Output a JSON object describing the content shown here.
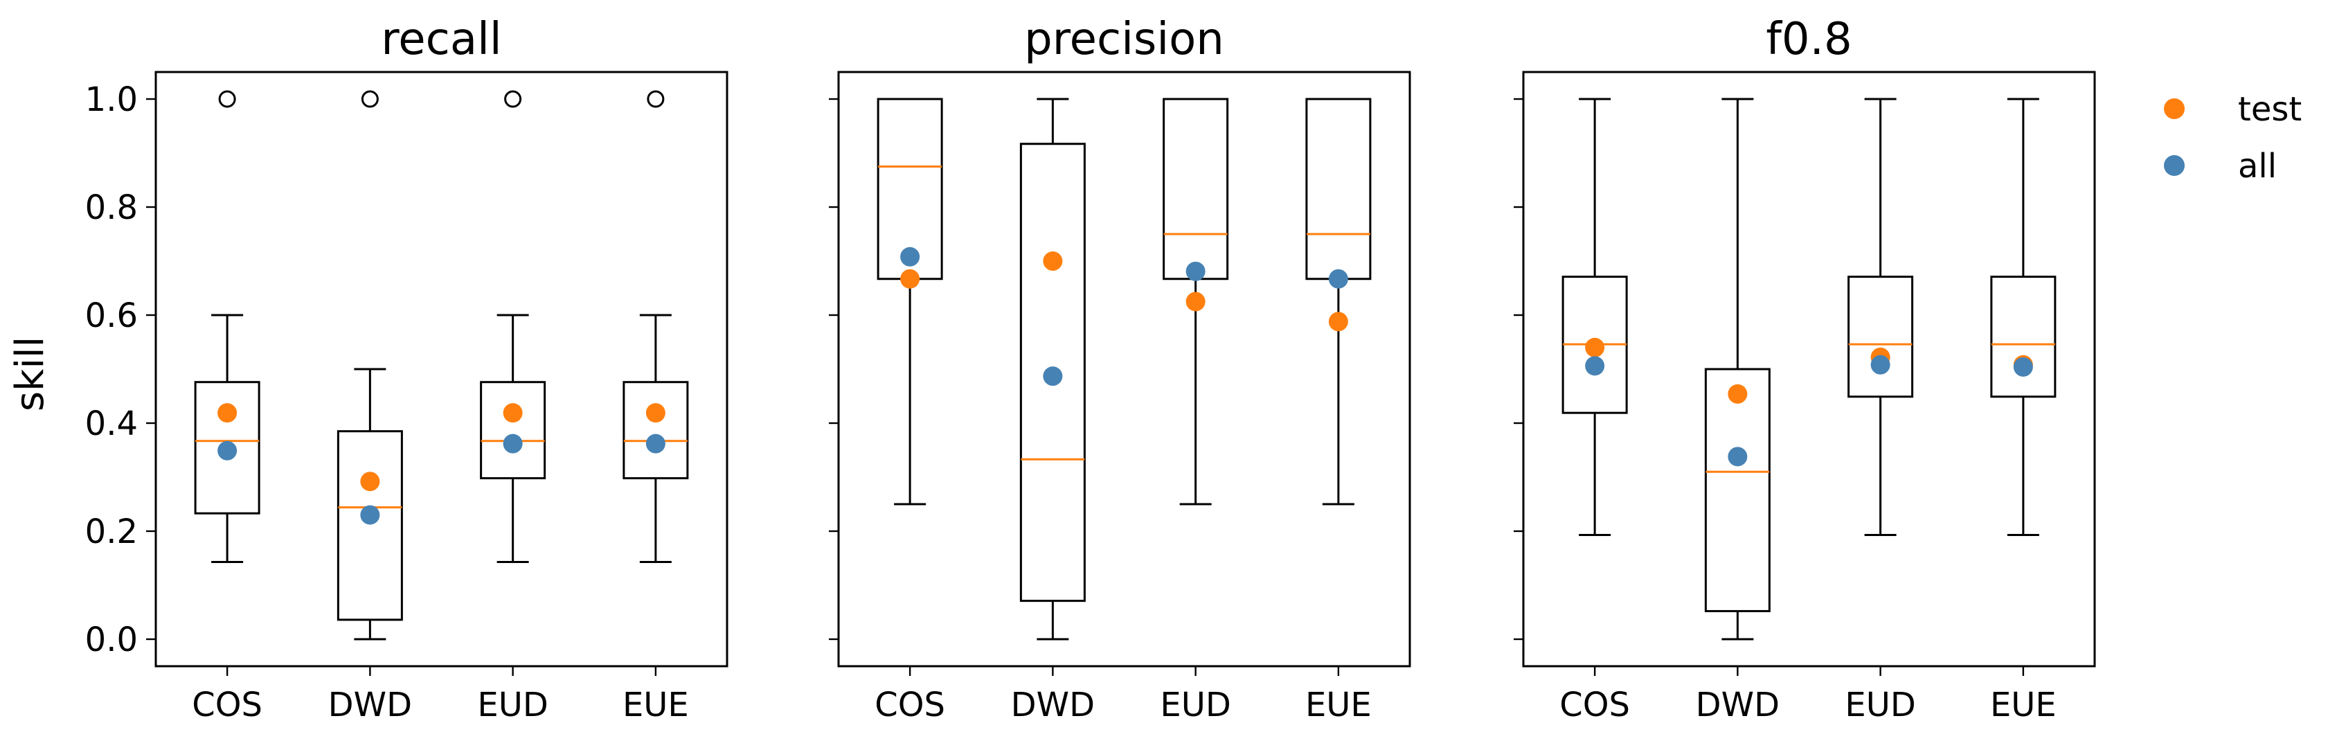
{
  "chart_data": {
    "type": "box",
    "ylabel": "skill",
    "ylim": [
      -0.05,
      1.05
    ],
    "yticks": [
      "0.0",
      "0.2",
      "0.4",
      "0.6",
      "0.8",
      "1.0"
    ],
    "categories": [
      "COS",
      "DWD",
      "EUD",
      "EUE"
    ],
    "legend": {
      "placement": "right",
      "entries": [
        {
          "name": "test",
          "color": "#ff7f0e"
        },
        {
          "name": "all",
          "color": "#4682b4"
        }
      ]
    },
    "colors": {
      "box": "#000000",
      "median": "#ff7f0e",
      "test": "#ff7f0e",
      "all": "#4682b4"
    },
    "panels": [
      {
        "title": "recall",
        "boxes": [
          {
            "category": "COS",
            "whisker_low": 0.143,
            "q1": 0.233,
            "median": 0.367,
            "q3": 0.476,
            "whisker_high": 0.6,
            "outliers": [
              1.0
            ],
            "test": 0.419,
            "all": 0.349
          },
          {
            "category": "DWD",
            "whisker_low": 0.0,
            "q1": 0.036,
            "median": 0.244,
            "q3": 0.385,
            "whisker_high": 0.5,
            "outliers": [
              1.0
            ],
            "test": 0.292,
            "all": 0.23
          },
          {
            "category": "EUD",
            "whisker_low": 0.143,
            "q1": 0.298,
            "median": 0.367,
            "q3": 0.476,
            "whisker_high": 0.6,
            "outliers": [
              1.0
            ],
            "test": 0.419,
            "all": 0.362
          },
          {
            "category": "EUE",
            "whisker_low": 0.143,
            "q1": 0.298,
            "median": 0.367,
            "q3": 0.476,
            "whisker_high": 0.6,
            "outliers": [
              1.0
            ],
            "test": 0.419,
            "all": 0.362
          }
        ]
      },
      {
        "title": "precision",
        "boxes": [
          {
            "category": "COS",
            "whisker_low": 0.25,
            "q1": 0.667,
            "median": 0.875,
            "q3": 1.0,
            "whisker_high": 1.0,
            "outliers": [],
            "test": 0.667,
            "all": 0.708
          },
          {
            "category": "DWD",
            "whisker_low": 0.0,
            "q1": 0.071,
            "median": 0.333,
            "q3": 0.917,
            "whisker_high": 1.0,
            "outliers": [],
            "test": 0.7,
            "all": 0.487
          },
          {
            "category": "EUD",
            "whisker_low": 0.25,
            "q1": 0.667,
            "median": 0.75,
            "q3": 1.0,
            "whisker_high": 1.0,
            "outliers": [],
            "test": 0.625,
            "all": 0.681
          },
          {
            "category": "EUE",
            "whisker_low": 0.25,
            "q1": 0.667,
            "median": 0.75,
            "q3": 1.0,
            "whisker_high": 1.0,
            "outliers": [],
            "test": 0.588,
            "all": 0.667
          }
        ]
      },
      {
        "title": "f0.8",
        "boxes": [
          {
            "category": "COS",
            "whisker_low": 0.193,
            "q1": 0.419,
            "median": 0.546,
            "q3": 0.671,
            "whisker_high": 1.0,
            "outliers": [],
            "test": 0.54,
            "all": 0.506
          },
          {
            "category": "DWD",
            "whisker_low": 0.0,
            "q1": 0.052,
            "median": 0.31,
            "q3": 0.5,
            "whisker_high": 1.0,
            "outliers": [],
            "test": 0.454,
            "all": 0.338
          },
          {
            "category": "EUD",
            "whisker_low": 0.193,
            "q1": 0.449,
            "median": 0.546,
            "q3": 0.671,
            "whisker_high": 1.0,
            "outliers": [],
            "test": 0.522,
            "all": 0.508
          },
          {
            "category": "EUE",
            "whisker_low": 0.193,
            "q1": 0.449,
            "median": 0.546,
            "q3": 0.671,
            "whisker_high": 1.0,
            "outliers": [],
            "test": 0.508,
            "all": 0.504
          }
        ]
      }
    ]
  }
}
